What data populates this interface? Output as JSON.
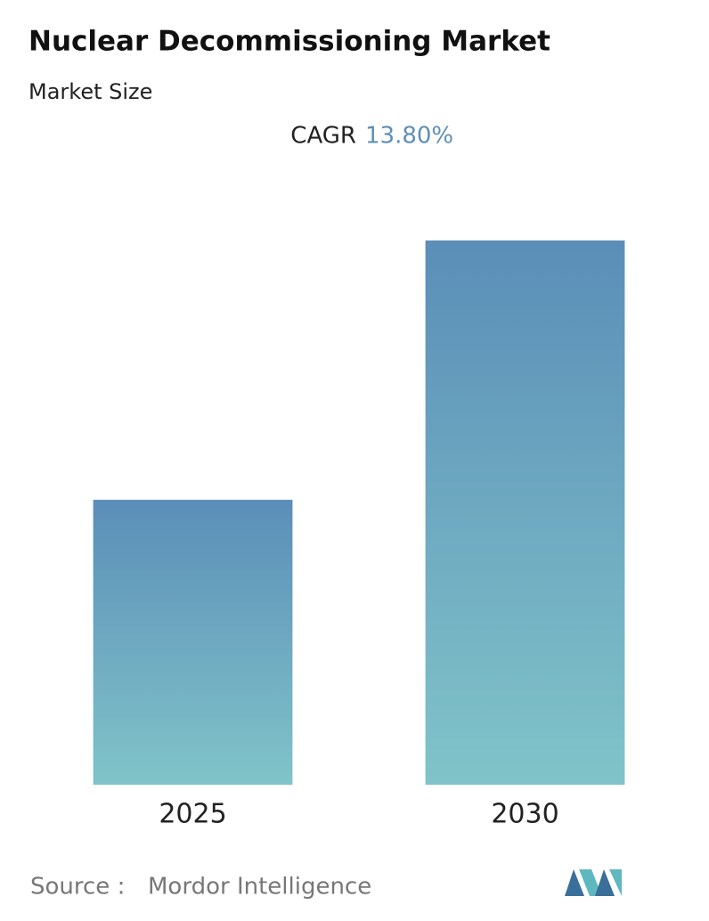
{
  "chart_data": {
    "type": "bar",
    "title": "Nuclear Decommissioning Market",
    "subtitle": "Market Size",
    "cagr_label": "CAGR",
    "cagr_value": "13.80%",
    "categories": [
      "2025",
      "2030"
    ],
    "values": [
      1,
      1.91
    ],
    "ylim": [
      0,
      1.91
    ],
    "color_top": "#5b8eb8",
    "color_bottom": "#80c4c9",
    "source_label": "Source :",
    "source": "Mordor Intelligence"
  }
}
